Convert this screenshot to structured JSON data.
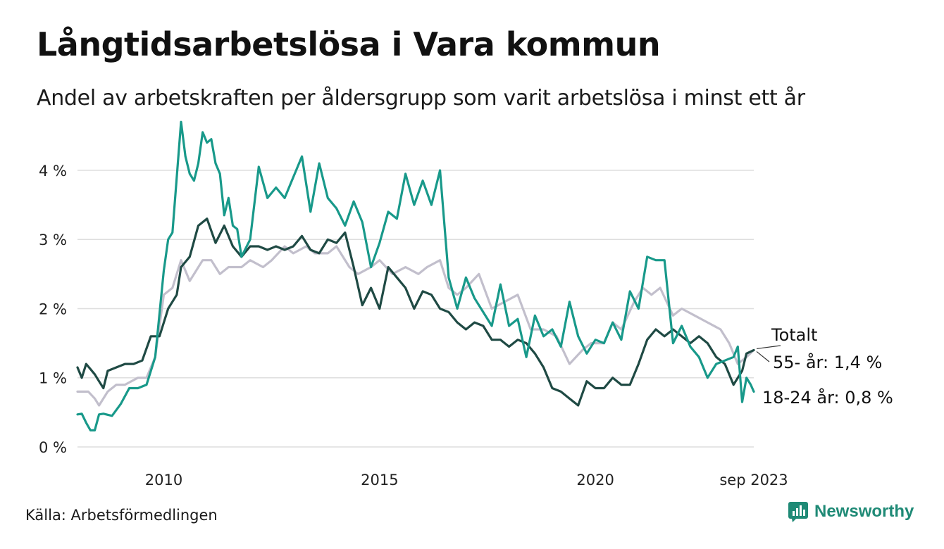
{
  "title": "Långtidsarbetslösa i Vara kommun",
  "subtitle": "Andel av arbetskraften per åldersgrupp som varit arbetslösa i minst ett år",
  "source": "Källa: Arbetsförmedlingen",
  "brand": "Newsworthy",
  "chart_data": {
    "type": "line",
    "title": "Långtidsarbetslösa i Vara kommun",
    "xlabel": "",
    "ylabel": "",
    "xlim": [
      2008.0,
      2023.67
    ],
    "ylim": [
      0,
      4.6
    ],
    "yticks": [
      0,
      1,
      2,
      3,
      4
    ],
    "ytick_labels": [
      "0 %",
      "1 %",
      "2 %",
      "3 %",
      "4 %"
    ],
    "xticks": [
      2010,
      2015,
      2020,
      2023.67
    ],
    "xtick_labels": [
      "2010",
      "2015",
      "2020",
      "sep 2023"
    ],
    "grid": true,
    "series": [
      {
        "name": "Totalt",
        "label": "Totalt",
        "color": "#c2bfcc",
        "x": [
          2008.0,
          2008.25,
          2008.4,
          2008.5,
          2008.7,
          2008.9,
          2009.1,
          2009.4,
          2009.6,
          2009.8,
          2010.0,
          2010.2,
          2010.4,
          2010.6,
          2010.9,
          2011.1,
          2011.3,
          2011.5,
          2011.8,
          2012.0,
          2012.3,
          2012.5,
          2012.8,
          2013.0,
          2013.3,
          2013.5,
          2013.8,
          2014.0,
          2014.3,
          2014.5,
          2014.8,
          2015.0,
          2015.3,
          2015.6,
          2015.9,
          2016.1,
          2016.4,
          2016.6,
          2016.8,
          2017.0,
          2017.3,
          2017.6,
          2017.9,
          2018.2,
          2018.5,
          2018.8,
          2019.1,
          2019.4,
          2019.7,
          2019.9,
          2020.2,
          2020.4,
          2020.6,
          2020.9,
          2021.1,
          2021.3,
          2021.5,
          2021.8,
          2022.0,
          2022.3,
          2022.6,
          2022.9,
          2023.1,
          2023.3,
          2023.5,
          2023.67
        ],
        "values": [
          0.8,
          0.8,
          0.7,
          0.6,
          0.8,
          0.9,
          0.9,
          1.0,
          1.0,
          1.3,
          2.2,
          2.3,
          2.7,
          2.4,
          2.7,
          2.7,
          2.5,
          2.6,
          2.6,
          2.7,
          2.6,
          2.7,
          2.9,
          2.8,
          2.9,
          2.8,
          2.8,
          2.9,
          2.6,
          2.5,
          2.6,
          2.7,
          2.5,
          2.6,
          2.5,
          2.6,
          2.7,
          2.3,
          2.2,
          2.3,
          2.5,
          2.0,
          2.1,
          2.2,
          1.7,
          1.7,
          1.6,
          1.2,
          1.4,
          1.5,
          1.5,
          1.8,
          1.7,
          2.1,
          2.3,
          2.2,
          2.3,
          1.9,
          2.0,
          1.9,
          1.8,
          1.7,
          1.5,
          1.2,
          1.3,
          1.4
        ]
      },
      {
        "name": "55- år",
        "label": "55- år: 1,4 %",
        "color": "#1f4a44",
        "x": [
          2008.0,
          2008.1,
          2008.2,
          2008.4,
          2008.5,
          2008.6,
          2008.7,
          2008.9,
          2009.1,
          2009.3,
          2009.5,
          2009.7,
          2009.9,
          2010.1,
          2010.3,
          2010.4,
          2010.6,
          2010.8,
          2011.0,
          2011.2,
          2011.4,
          2011.6,
          2011.8,
          2012.0,
          2012.2,
          2012.4,
          2012.6,
          2012.8,
          2013.0,
          2013.2,
          2013.4,
          2013.6,
          2013.8,
          2014.0,
          2014.2,
          2014.4,
          2014.6,
          2014.8,
          2015.0,
          2015.2,
          2015.4,
          2015.6,
          2015.8,
          2016.0,
          2016.2,
          2016.4,
          2016.6,
          2016.8,
          2017.0,
          2017.2,
          2017.4,
          2017.6,
          2017.8,
          2018.0,
          2018.2,
          2018.4,
          2018.6,
          2018.8,
          2019.0,
          2019.2,
          2019.4,
          2019.6,
          2019.8,
          2020.0,
          2020.2,
          2020.4,
          2020.6,
          2020.8,
          2021.0,
          2021.2,
          2021.4,
          2021.6,
          2021.8,
          2022.0,
          2022.2,
          2022.4,
          2022.6,
          2022.8,
          2023.0,
          2023.2,
          2023.4,
          2023.5,
          2023.67
        ],
        "values": [
          1.15,
          1.0,
          1.2,
          1.05,
          0.95,
          0.85,
          1.1,
          1.15,
          1.2,
          1.2,
          1.25,
          1.6,
          1.6,
          2.0,
          2.2,
          2.6,
          2.75,
          3.2,
          3.3,
          2.95,
          3.2,
          2.9,
          2.75,
          2.9,
          2.9,
          2.85,
          2.9,
          2.85,
          2.9,
          3.05,
          2.85,
          2.8,
          3.0,
          2.95,
          3.1,
          2.6,
          2.05,
          2.3,
          2.0,
          2.6,
          2.45,
          2.3,
          2.0,
          2.25,
          2.2,
          2.0,
          1.95,
          1.8,
          1.7,
          1.8,
          1.75,
          1.55,
          1.55,
          1.45,
          1.55,
          1.5,
          1.35,
          1.15,
          0.85,
          0.8,
          0.7,
          0.6,
          0.95,
          0.85,
          0.85,
          1.0,
          0.9,
          0.9,
          1.2,
          1.55,
          1.7,
          1.6,
          1.7,
          1.6,
          1.5,
          1.6,
          1.5,
          1.3,
          1.2,
          0.9,
          1.1,
          1.35,
          1.4
        ]
      },
      {
        "name": "18-24 år",
        "label": "18-24 år: 0,8 %",
        "color": "#18998a",
        "x": [
          2008.0,
          2008.1,
          2008.2,
          2008.3,
          2008.4,
          2008.5,
          2008.6,
          2008.8,
          2009.0,
          2009.2,
          2009.4,
          2009.6,
          2009.8,
          2010.0,
          2010.1,
          2010.2,
          2010.4,
          2010.5,
          2010.6,
          2010.7,
          2010.8,
          2010.9,
          2011.0,
          2011.1,
          2011.2,
          2011.3,
          2011.4,
          2011.5,
          2011.6,
          2011.7,
          2011.8,
          2012.0,
          2012.2,
          2012.4,
          2012.6,
          2012.8,
          2013.0,
          2013.2,
          2013.4,
          2013.6,
          2013.8,
          2014.0,
          2014.2,
          2014.4,
          2014.6,
          2014.8,
          2015.0,
          2015.2,
          2015.4,
          2015.6,
          2015.8,
          2016.0,
          2016.2,
          2016.4,
          2016.6,
          2016.8,
          2017.0,
          2017.2,
          2017.4,
          2017.6,
          2017.8,
          2018.0,
          2018.2,
          2018.4,
          2018.6,
          2018.8,
          2019.0,
          2019.2,
          2019.4,
          2019.6,
          2019.8,
          2020.0,
          2020.2,
          2020.4,
          2020.6,
          2020.8,
          2021.0,
          2021.2,
          2021.4,
          2021.6,
          2021.8,
          2022.0,
          2022.2,
          2022.4,
          2022.6,
          2022.8,
          2023.0,
          2023.2,
          2023.3,
          2023.4,
          2023.5,
          2023.6,
          2023.67
        ],
        "values": [
          0.47,
          0.48,
          0.35,
          0.24,
          0.24,
          0.47,
          0.48,
          0.45,
          0.62,
          0.85,
          0.85,
          0.9,
          1.3,
          2.55,
          3.0,
          3.1,
          4.7,
          4.2,
          3.95,
          3.85,
          4.1,
          4.55,
          4.4,
          4.45,
          4.1,
          3.95,
          3.35,
          3.6,
          3.2,
          3.15,
          2.75,
          3.0,
          4.05,
          3.6,
          3.75,
          3.6,
          3.9,
          4.2,
          3.4,
          4.1,
          3.6,
          3.45,
          3.2,
          3.55,
          3.25,
          2.6,
          2.95,
          3.4,
          3.3,
          3.95,
          3.5,
          3.85,
          3.5,
          4.0,
          2.45,
          2.0,
          2.45,
          2.15,
          1.95,
          1.75,
          2.35,
          1.75,
          1.85,
          1.3,
          1.9,
          1.6,
          1.7,
          1.45,
          2.1,
          1.6,
          1.35,
          1.55,
          1.5,
          1.8,
          1.55,
          2.25,
          2.0,
          2.75,
          2.7,
          2.7,
          1.5,
          1.75,
          1.45,
          1.3,
          1.0,
          1.2,
          1.25,
          1.3,
          1.45,
          0.65,
          1.0,
          0.9,
          0.8
        ]
      }
    ]
  }
}
